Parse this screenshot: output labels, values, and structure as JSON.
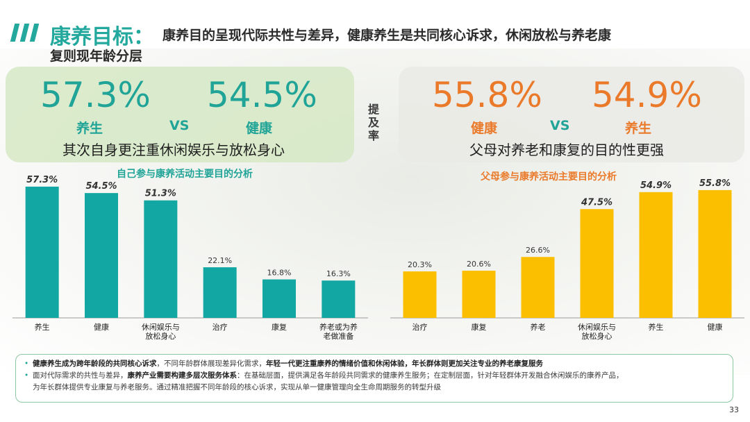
{
  "header": {
    "title": "康养目标：",
    "subtitle_line1": "康养目的呈现代际共性与差异，健康养生是共同核心诉求，休闲放松与养老康",
    "subtitle_line2": "复则现年龄分层"
  },
  "left_panel": {
    "value_a": "57.3%",
    "label_a": "养生",
    "vs": "VS",
    "value_b": "54.5%",
    "label_b": "健康",
    "description": "其次自身更注重休闲娱乐与放松身心"
  },
  "right_panel": {
    "value_a": "55.8%",
    "label_a": "健康",
    "vs": "VS",
    "value_b": "54.9%",
    "label_b": "养生",
    "description": "父母对养老和康复的目的性更强"
  },
  "center_label": [
    "提",
    "及",
    "率"
  ],
  "chart_data": [
    {
      "type": "bar",
      "title": "自己参与康养活动主要目的分析",
      "categories": [
        [
          "养生"
        ],
        [
          "健康"
        ],
        [
          "休闲娱乐与",
          "放松身心"
        ],
        [
          "治疗"
        ],
        [
          "康复"
        ],
        [
          "养老或为养",
          "老做准备"
        ]
      ],
      "values": [
        57.3,
        54.5,
        51.3,
        22.1,
        16.8,
        16.3
      ],
      "data_labels": [
        "57.3%",
        "54.5%",
        "51.3%",
        "22.1%",
        "16.8%",
        "16.3%"
      ],
      "emphasized": [
        true,
        true,
        true,
        false,
        false,
        false
      ],
      "color": "#13a7a3",
      "ylim": [
        0,
        60
      ],
      "xlabel": "",
      "ylabel": ""
    },
    {
      "type": "bar",
      "title": "父母参与康养活动主要目的分析",
      "categories": [
        [
          "治疗"
        ],
        [
          "康复"
        ],
        [
          "养老"
        ],
        [
          "休闲娱乐与",
          "放松身心"
        ],
        [
          "养生"
        ],
        [
          "健康"
        ]
      ],
      "values": [
        20.3,
        20.6,
        26.6,
        47.5,
        54.9,
        55.8
      ],
      "data_labels": [
        "20.3%",
        "20.6%",
        "26.6%",
        "47.5%",
        "54.9%",
        "55.8%"
      ],
      "emphasized": [
        false,
        false,
        false,
        true,
        true,
        true
      ],
      "color": "#fbbf00",
      "ylim": [
        0,
        60
      ],
      "xlabel": "",
      "ylabel": ""
    }
  ],
  "notes": [
    {
      "segments": [
        {
          "text": "健康养生成为跨年龄段的共同核心诉求",
          "bold": true
        },
        {
          "text": "，不同年龄群体展现差异化需求，",
          "bold": false
        },
        {
          "text": "年轻一代更注重康养的情绪价值和休闲体验，年长群体则更加关注专业的养老康复服务",
          "bold": true
        }
      ]
    },
    {
      "segments": [
        {
          "text": "面对代际需求的共性与差异，",
          "bold": false
        },
        {
          "text": "康养产业需要构建多层次服务体系",
          "bold": true
        },
        {
          "text": "：在基础层面，提供满足各年龄段共同需求的健康养生服务；在定制层面，针对年轻群体开发融合休闲娱乐的康养产品，",
          "bold": false
        }
      ]
    },
    {
      "segments": [
        {
          "text": "为年长群体提供专业康复与养老服务。通过精准把握不同年龄段的核心诉求，实现从单一健康管理向全生命周期服务的转型升级",
          "bold": false
        }
      ],
      "continuation": true
    }
  ],
  "page_number": "33"
}
